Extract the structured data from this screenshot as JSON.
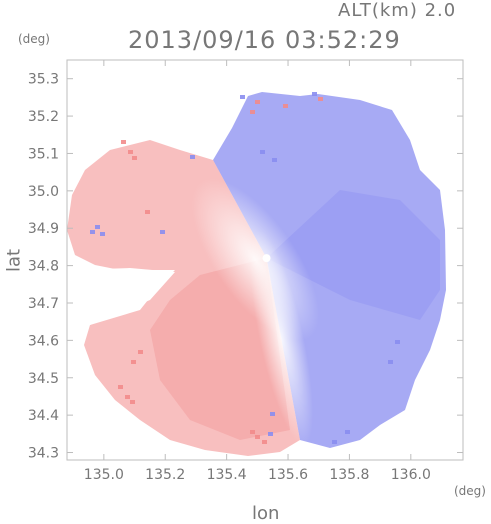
{
  "header": {
    "altitude": "ALT(km) 2.0",
    "timestamp": "2013/09/16 03:52:29"
  },
  "axes": {
    "y_unit": "(deg)",
    "x_unit": "(deg)",
    "y_label": "lat",
    "x_label": "lon",
    "y_ticks": [
      "35.3",
      "35.2",
      "35.1",
      "35.0",
      "34.9",
      "34.8",
      "34.7",
      "34.6",
      "34.5",
      "34.4",
      "34.3"
    ],
    "x_ticks": [
      "135.0",
      "135.2",
      "135.4",
      "135.6",
      "135.8",
      "136.0"
    ],
    "x_range": [
      134.88,
      136.17
    ],
    "y_range": [
      34.28,
      35.35
    ]
  },
  "radar": {
    "center_lon": 135.53,
    "center_lat": 34.82,
    "colors": {
      "away": "#8a8df0",
      "toward": "#f28b8b",
      "zero": "#ffffff"
    }
  }
}
